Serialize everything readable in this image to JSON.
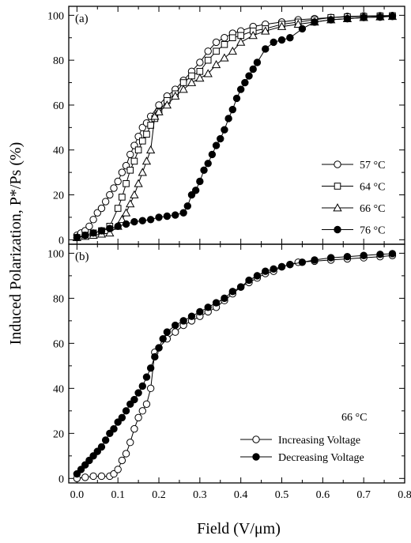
{
  "y_axis_title": "Induced Polarization, P*/Ps (%)",
  "x_axis_title": "Field (V/μm)",
  "chart_data": [
    {
      "type": "line",
      "panel": "(a)",
      "xlim": [
        -0.02,
        0.8
      ],
      "ylim": [
        -2,
        104
      ],
      "x_ticks": [
        "0.0",
        "0.1",
        "0.2",
        "0.3",
        "0.4",
        "0.5",
        "0.6",
        "0.7",
        "0.8"
      ],
      "y_ticks": [
        "0",
        "20",
        "40",
        "60",
        "80",
        "100"
      ],
      "legend_position": "right",
      "series": [
        {
          "name": "57 °C",
          "marker": "circle-open",
          "x": [
            0.0,
            0.01,
            0.02,
            0.03,
            0.04,
            0.05,
            0.06,
            0.07,
            0.08,
            0.09,
            0.1,
            0.11,
            0.12,
            0.13,
            0.14,
            0.15,
            0.16,
            0.17,
            0.18,
            0.2,
            0.22,
            0.24,
            0.26,
            0.28,
            0.3,
            0.32,
            0.34,
            0.36,
            0.38,
            0.4,
            0.43,
            0.46,
            0.5,
            0.54,
            0.58,
            0.62,
            0.66,
            0.7,
            0.74,
            0.77
          ],
          "y": [
            2,
            3,
            4,
            6,
            9,
            12,
            14,
            17,
            20,
            23,
            26,
            30,
            33,
            38,
            42,
            46,
            50,
            52,
            55,
            60,
            64,
            67,
            71,
            75,
            79,
            84,
            88,
            90,
            92,
            93,
            95,
            96,
            97,
            98,
            98.5,
            99,
            99.5,
            99.7,
            99.8,
            99.9
          ]
        },
        {
          "name": "64 °C",
          "marker": "square-open",
          "x": [
            0.0,
            0.02,
            0.04,
            0.06,
            0.08,
            0.1,
            0.11,
            0.12,
            0.13,
            0.14,
            0.15,
            0.16,
            0.17,
            0.18,
            0.19,
            0.2,
            0.22,
            0.24,
            0.26,
            0.28,
            0.3,
            0.32,
            0.34,
            0.36,
            0.38,
            0.4,
            0.43,
            0.46,
            0.5,
            0.54,
            0.58,
            0.62,
            0.66,
            0.7,
            0.74,
            0.77
          ],
          "y": [
            1,
            2,
            3,
            4,
            6,
            14,
            19,
            25,
            31,
            35,
            40,
            44,
            47,
            51,
            54,
            57,
            62,
            65,
            70,
            73,
            75,
            80,
            84,
            87,
            90,
            91,
            93,
            94,
            96,
            97,
            98,
            99,
            99.3,
            99.5,
            99.7,
            99.8
          ]
        },
        {
          "name": "66 °C",
          "marker": "triangle-open",
          "x": [
            0.0,
            0.02,
            0.04,
            0.06,
            0.08,
            0.1,
            0.11,
            0.12,
            0.13,
            0.14,
            0.15,
            0.16,
            0.17,
            0.18,
            0.19,
            0.2,
            0.22,
            0.24,
            0.26,
            0.28,
            0.3,
            0.32,
            0.34,
            0.36,
            0.38,
            0.4,
            0.43,
            0.46,
            0.5,
            0.54,
            0.58,
            0.62,
            0.66,
            0.7,
            0.74,
            0.77
          ],
          "y": [
            1,
            1.5,
            2,
            2.5,
            3,
            6,
            9,
            12,
            16,
            20,
            25,
            30,
            35,
            40,
            55,
            57,
            60,
            64,
            67,
            70,
            72,
            74,
            78,
            81,
            84,
            88,
            91,
            93,
            95,
            96,
            97,
            98,
            98.5,
            99,
            99.3,
            99.5
          ]
        },
        {
          "name": "76 °C",
          "marker": "circle-filled",
          "x": [
            0.0,
            0.02,
            0.04,
            0.06,
            0.08,
            0.1,
            0.12,
            0.14,
            0.16,
            0.18,
            0.2,
            0.22,
            0.24,
            0.26,
            0.27,
            0.28,
            0.29,
            0.3,
            0.31,
            0.32,
            0.33,
            0.34,
            0.35,
            0.36,
            0.37,
            0.38,
            0.39,
            0.4,
            0.41,
            0.42,
            0.43,
            0.44,
            0.46,
            0.48,
            0.5,
            0.52,
            0.55,
            0.58,
            0.62,
            0.66,
            0.7,
            0.74,
            0.77
          ],
          "y": [
            1,
            2,
            3,
            4,
            5,
            6,
            7,
            8,
            8.5,
            9,
            10,
            10.5,
            11,
            12,
            15,
            20,
            22,
            26,
            31,
            34,
            38,
            42,
            45,
            49,
            54,
            58,
            63,
            67,
            70,
            73,
            76,
            79,
            85,
            88,
            89,
            90,
            94,
            97,
            98,
            98.5,
            99,
            99.2,
            99.5
          ]
        }
      ]
    },
    {
      "type": "line",
      "panel": "(b)",
      "xlim": [
        -0.02,
        0.8
      ],
      "ylim": [
        -2,
        104
      ],
      "x_ticks": [
        "0.0",
        "0.1",
        "0.2",
        "0.3",
        "0.4",
        "0.5",
        "0.6",
        "0.7",
        "0.8"
      ],
      "y_ticks": [
        "0",
        "20",
        "40",
        "60",
        "80",
        "100"
      ],
      "legend_position": "bottom-right",
      "annotation": "66 °C",
      "series": [
        {
          "name": "Increasing Voltage",
          "marker": "circle-open",
          "x": [
            0.0,
            0.02,
            0.04,
            0.06,
            0.08,
            0.09,
            0.1,
            0.11,
            0.12,
            0.13,
            0.14,
            0.15,
            0.16,
            0.17,
            0.18,
            0.19,
            0.2,
            0.22,
            0.24,
            0.26,
            0.28,
            0.3,
            0.32,
            0.34,
            0.36,
            0.38,
            0.4,
            0.42,
            0.44,
            0.46,
            0.48,
            0.5,
            0.52,
            0.54,
            0.58,
            0.62,
            0.66,
            0.7,
            0.74,
            0.77
          ],
          "y": [
            0,
            0.5,
            1,
            1,
            1,
            2,
            4,
            8,
            11,
            16,
            22,
            27,
            30,
            33,
            40,
            56,
            58,
            62,
            65,
            68,
            70,
            72,
            74,
            76,
            79,
            82,
            85,
            87,
            89,
            91,
            92,
            94,
            95,
            96,
            96.5,
            97,
            97.5,
            98,
            98.5,
            99
          ]
        },
        {
          "name": "Decreasing Voltage",
          "marker": "circle-filled",
          "x": [
            0.0,
            0.01,
            0.02,
            0.03,
            0.04,
            0.05,
            0.06,
            0.07,
            0.08,
            0.09,
            0.1,
            0.11,
            0.12,
            0.13,
            0.14,
            0.15,
            0.16,
            0.17,
            0.18,
            0.19,
            0.2,
            0.21,
            0.22,
            0.24,
            0.26,
            0.28,
            0.3,
            0.32,
            0.34,
            0.36,
            0.38,
            0.4,
            0.42,
            0.44,
            0.46,
            0.48,
            0.5,
            0.52,
            0.55,
            0.58,
            0.62,
            0.66,
            0.7,
            0.74,
            0.77
          ],
          "y": [
            2,
            4,
            6,
            8,
            10,
            12,
            14,
            17,
            20,
            22,
            25,
            27,
            30,
            33,
            35,
            38,
            41,
            45,
            49,
            54,
            58,
            62,
            65,
            68,
            70,
            72,
            74,
            76,
            78,
            80,
            83,
            85,
            88,
            90,
            92,
            93,
            94,
            95,
            96,
            97,
            98,
            98.5,
            99,
            99.5,
            99.8
          ]
        }
      ]
    }
  ]
}
